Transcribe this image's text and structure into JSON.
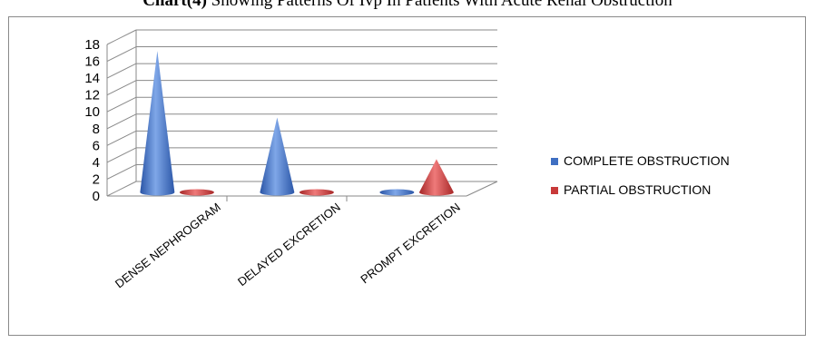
{
  "title_bold": "Chart(4)",
  "title_rest": " Showing Patterns Of Ivp In Patients With Acute Renal Obstruction",
  "chart_data": {
    "type": "bar",
    "shape": "cone-3d",
    "title": "Chart(4) Showing Patterns Of Ivp In Patients With Acute Renal Obstruction",
    "categories": [
      "DENSE NEPHROGRAM",
      "DELAYED EXCRETION",
      "PROMPT EXCRETION"
    ],
    "series": [
      {
        "name": "COMPLETE OBSTRUCTION",
        "values": [
          17,
          9,
          0
        ],
        "color": "#3f6fc2"
      },
      {
        "name": "PARTIAL OBSTRUCTION",
        "values": [
          0,
          0,
          4
        ],
        "color": "#c83a3a"
      }
    ],
    "ylim": [
      0,
      18
    ],
    "yticks": [
      0,
      2,
      4,
      6,
      8,
      10,
      12,
      14,
      16,
      18
    ],
    "grid": true,
    "legend": "right"
  }
}
